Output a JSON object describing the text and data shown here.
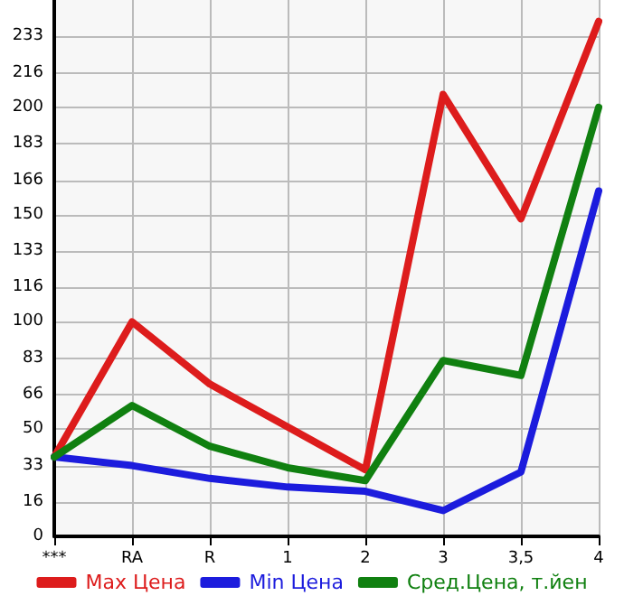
{
  "chart_data": {
    "type": "line",
    "categories": [
      "***",
      "RA",
      "R",
      "1",
      "2",
      "3",
      "3,5",
      "4"
    ],
    "series": [
      {
        "name": "Max Цена",
        "color": "#dd1c1c",
        "values": [
          37,
          100,
          71,
          51,
          31,
          206,
          148,
          240
        ]
      },
      {
        "name": "Min Цена",
        "color": "#1c1cdd",
        "values": [
          37,
          33,
          27,
          23,
          21,
          12,
          30,
          161
        ]
      },
      {
        "name": "Сред.Цена, т.йен",
        "color": "#108010",
        "values": [
          37,
          61,
          42,
          32,
          26,
          82,
          75,
          200
        ]
      }
    ],
    "ylim": [
      0,
      250
    ],
    "yticks": [
      0,
      16,
      33,
      50,
      66,
      83,
      100,
      116,
      133,
      150,
      166,
      183,
      200,
      216,
      233
    ],
    "grid": true,
    "legend": "bottom",
    "marker": "none",
    "line_style": "solid"
  }
}
